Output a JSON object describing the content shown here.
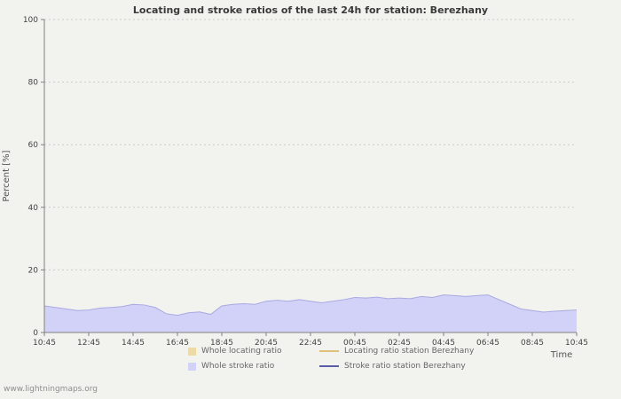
{
  "page": {
    "watermark": "www.lightningmaps.org"
  },
  "chart_data": {
    "type": "area",
    "title": "Locating and stroke ratios of the last 24h for station: Berezhany",
    "xlabel": "Time",
    "ylabel": "Percent  [%]",
    "ylim": [
      0,
      100
    ],
    "y_ticks": [
      0,
      20,
      40,
      60,
      80,
      100
    ],
    "x_tick_labels": [
      "10:45",
      "12:45",
      "14:45",
      "16:45",
      "18:45",
      "20:45",
      "22:45",
      "00:45",
      "02:45",
      "04:45",
      "06:45",
      "08:45",
      "10:45"
    ],
    "grid": true,
    "legend_position": "bottom",
    "axis_color": "#808080",
    "grid_color": "#c9c9c9",
    "series": [
      {
        "name": "Whole locating ratio",
        "type": "area",
        "color": "#eedaa4",
        "values": []
      },
      {
        "name": "Whole stroke ratio",
        "type": "area",
        "color": "#d2d2f8",
        "edge": "#a9a9e2",
        "values": [
          8.5,
          8.0,
          7.5,
          7.0,
          7.2,
          7.8,
          8.0,
          8.3,
          9.0,
          8.8,
          8.0,
          6.0,
          5.5,
          6.3,
          6.6,
          5.8,
          8.5,
          9.0,
          9.2,
          9.0,
          10.0,
          10.3,
          10.0,
          10.5,
          10.0,
          9.5,
          10.0,
          10.5,
          11.2,
          11.0,
          11.3,
          10.8,
          11.0,
          10.8,
          11.5,
          11.2,
          12.0,
          11.8,
          11.5,
          11.8,
          12.0,
          10.5,
          9.0,
          7.5,
          7.0,
          6.5,
          6.8,
          7.0,
          7.2
        ]
      },
      {
        "name": "Locating ratio station Berezhany",
        "type": "line",
        "color": "#e0c179",
        "values": []
      },
      {
        "name": "Stroke ratio station Berezhany",
        "type": "line",
        "color": "#5b5ba8",
        "values": []
      }
    ]
  },
  "legend": {
    "items": [
      {
        "label": "Whole locating ratio",
        "swatch": "square",
        "color": "#eedaa4"
      },
      {
        "label": "Locating ratio station Berezhany",
        "swatch": "line",
        "color": "#e0c179"
      },
      {
        "label": "Whole stroke ratio",
        "swatch": "square",
        "color": "#d2d2f8"
      },
      {
        "label": "Stroke ratio station Berezhany",
        "swatch": "line",
        "color": "#5b5ba8"
      }
    ]
  }
}
